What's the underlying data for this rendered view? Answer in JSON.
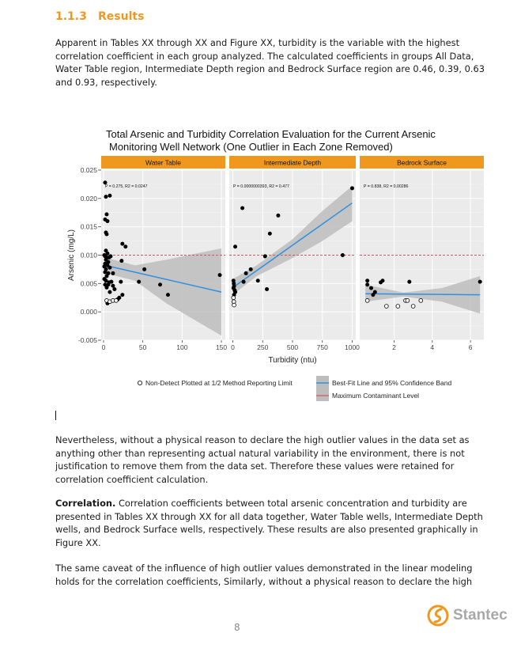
{
  "heading": {
    "number": "1.1.3",
    "title": "Results"
  },
  "paragraphs": {
    "p1": "Apparent in Tables XX through XX and Figure XX, turbidity is the variable with the highest correlation coefficient in each group analyzed. The calculated coefficients in groups All Data, Water Table region, Intermediate Depth region and Bedrock Surface region are 0.46, 0.39, 0.63 and 0.93, respectively.",
    "p2": "Nevertheless, without a physical reason to declare the high outlier values in the data set as anything other than representing actual natural variability in the environment, there is not justification to remove them from the data set. Therefore these values were retained for correlation coefficient calculation.",
    "p3_bold": "Correlation.",
    "p3": " Correlation coefficients between total arsenic concentration and turbidity are presented in Tables XX through XX for all data together, Water Table wells, Intermediate Depth wells, and Bedrock Surface wells, respectively. These results are also presented graphically in Figure XX.",
    "p4": "The same caveat of the influence of high outlier values demonstrated in the linear modeling holds for the correlation coefficients, Similarly, without a physical reason to declare the high"
  },
  "footer": {
    "page_number": "8",
    "logo_text": "Stantec"
  },
  "colors": {
    "accent": "#f0981e",
    "fit_line": "#2f8fe0",
    "mcl_line": "#e05050",
    "band": "#bdbdbd",
    "panel_bg": "#ebebeb"
  },
  "chart_data": {
    "type": "scatter",
    "title_line1": "Total Arsenic and Turbidity Correlation Evaluation for the Current Arsenic",
    "title_line2": "Monitoring Well Network (One Outlier in Each Zone Removed)",
    "xlabel": "Turbidity (ntu)",
    "ylabel": "Arsenic (mg/L)",
    "ylim": [
      -0.005,
      0.025
    ],
    "yticks": [
      "-0.005",
      "0.000",
      "0.005",
      "0.010",
      "0.015",
      "0.020",
      "0.025"
    ],
    "mcl": 0.01,
    "legend": {
      "nondetect": "Non-Detect Plotted at 1/2 Method Reporting Limit",
      "fit": "Best-Fit Line and 95% Confidence Band",
      "mcl": "Maximum Contaminant Level"
    },
    "panels": [
      {
        "name": "Water Table",
        "annotation": "P = 0.275, R2 = 0.0247",
        "xlim": [
          -3,
          155
        ],
        "xticks": [
          0,
          50,
          100,
          150
        ],
        "fit": [
          [
            2,
            0.0082
          ],
          [
            150,
            0.0035
          ]
        ],
        "band_upper": [
          [
            2,
            0.0096
          ],
          [
            40,
            0.0082
          ],
          [
            80,
            0.0092
          ],
          [
            150,
            0.0112
          ]
        ],
        "band_lower": [
          [
            2,
            0.0068
          ],
          [
            40,
            0.0055
          ],
          [
            80,
            0.0015
          ],
          [
            150,
            -0.0042
          ]
        ],
        "points": [
          [
            2,
            0.0228
          ],
          [
            3,
            0.0203
          ],
          [
            8,
            0.0205
          ],
          [
            4,
            0.0172
          ],
          [
            2,
            0.0163
          ],
          [
            5,
            0.016
          ],
          [
            3,
            0.014
          ],
          [
            4,
            0.0137
          ],
          [
            24,
            0.012
          ],
          [
            28,
            0.0115
          ],
          [
            3,
            0.0108
          ],
          [
            5,
            0.0103
          ],
          [
            1,
            0.01
          ],
          [
            2,
            0.0098
          ],
          [
            4,
            0.0096
          ],
          [
            7,
            0.0096
          ],
          [
            9,
            0.0098
          ],
          [
            3,
            0.0092
          ],
          [
            6,
            0.0088
          ],
          [
            23,
            0.009
          ],
          [
            2,
            0.0085
          ],
          [
            1,
            0.008
          ],
          [
            5,
            0.0082
          ],
          [
            8,
            0.0078
          ],
          [
            3,
            0.0075
          ],
          [
            2,
            0.007
          ],
          [
            6,
            0.0068
          ],
          [
            12,
            0.0068
          ],
          [
            4,
            0.0063
          ],
          [
            1,
            0.0058
          ],
          [
            3,
            0.0055
          ],
          [
            7,
            0.0052
          ],
          [
            10,
            0.0053
          ],
          [
            2,
            0.0048
          ],
          [
            6,
            0.0048
          ],
          [
            12,
            0.0046
          ],
          [
            14,
            0.004
          ],
          [
            4,
            0.0043
          ],
          [
            22,
            0.0053
          ],
          [
            8,
            0.0035
          ],
          [
            24,
            0.003
          ],
          [
            20,
            0.0025
          ],
          [
            18,
            0.0022
          ],
          [
            45,
            0.0053
          ],
          [
            52,
            0.0075
          ],
          [
            72,
            0.0048
          ],
          [
            82,
            0.003
          ],
          [
            148,
            0.0065
          ],
          [
            5,
            0.0015
          ]
        ],
        "nondetect": [
          [
            4,
            0.002
          ],
          [
            8,
            0.0018
          ],
          [
            12,
            0.002
          ],
          [
            16,
            0.002
          ]
        ]
      },
      {
        "name": "Intermediate Depth",
        "annotation": "P = 0.0000000393, R2 = 0.477",
        "xlim": [
          -30,
          1030
        ],
        "xticks": [
          0,
          250,
          500,
          750,
          1000
        ],
        "fit": [
          [
            0,
            0.0043
          ],
          [
            1000,
            0.0192
          ]
        ],
        "band_upper": [
          [
            0,
            0.0058
          ],
          [
            200,
            0.0082
          ],
          [
            500,
            0.0128
          ],
          [
            750,
            0.0178
          ],
          [
            1000,
            0.0222
          ]
        ],
        "band_lower": [
          [
            0,
            0.003
          ],
          [
            200,
            0.0063
          ],
          [
            500,
            0.0095
          ],
          [
            750,
            0.0125
          ],
          [
            1000,
            0.016
          ]
        ],
        "points": [
          [
            80,
            0.0183
          ],
          [
            310,
            0.0138
          ],
          [
            380,
            0.017
          ],
          [
            1000,
            0.0218
          ],
          [
            20,
            0.0115
          ],
          [
            270,
            0.0098
          ],
          [
            920,
            0.01
          ],
          [
            210,
            0.0055
          ],
          [
            90,
            0.0053
          ],
          [
            110,
            0.0068
          ],
          [
            150,
            0.0075
          ],
          [
            5,
            0.0055
          ],
          [
            8,
            0.005
          ],
          [
            10,
            0.0045
          ],
          [
            5,
            0.0042
          ],
          [
            15,
            0.0038
          ],
          [
            20,
            0.0035
          ],
          [
            10,
            0.003
          ],
          [
            285,
            0.004
          ]
        ],
        "nondetect": [
          [
            5,
            0.0025
          ],
          [
            8,
            0.0018
          ],
          [
            10,
            0.0012
          ]
        ]
      },
      {
        "name": "Bedrock Surface",
        "annotation": "P = 0.838, R2 = 0.00286",
        "xlim": [
          0.2,
          6.7
        ],
        "xticks": [
          2,
          4,
          6
        ],
        "xtickLabels": [
          "2",
          "4",
          "6"
        ],
        "fit": [
          [
            0.5,
            0.0032
          ],
          [
            6.5,
            0.003
          ]
        ],
        "band_upper": [
          [
            0.5,
            0.0048
          ],
          [
            2.5,
            0.0034
          ],
          [
            4.5,
            0.0042
          ],
          [
            6.5,
            0.0063
          ]
        ],
        "band_lower": [
          [
            0.5,
            0.0018
          ],
          [
            2.5,
            0.0027
          ],
          [
            4.5,
            0.0018
          ],
          [
            6.5,
            -0.0003
          ]
        ],
        "points": [
          [
            0.6,
            0.0055
          ],
          [
            0.6,
            0.0048
          ],
          [
            0.8,
            0.0042
          ],
          [
            1.0,
            0.0035
          ],
          [
            1.3,
            0.0052
          ],
          [
            1.4,
            0.0055
          ],
          [
            0.9,
            0.003
          ],
          [
            2.8,
            0.0053
          ],
          [
            6.5,
            0.0053
          ]
        ],
        "nondetect": [
          [
            0.6,
            0.002
          ],
          [
            1.6,
            0.001
          ],
          [
            2.2,
            0.001
          ],
          [
            2.6,
            0.002
          ],
          [
            2.7,
            0.002
          ],
          [
            3.0,
            0.001
          ],
          [
            3.4,
            0.002
          ]
        ]
      }
    ]
  }
}
